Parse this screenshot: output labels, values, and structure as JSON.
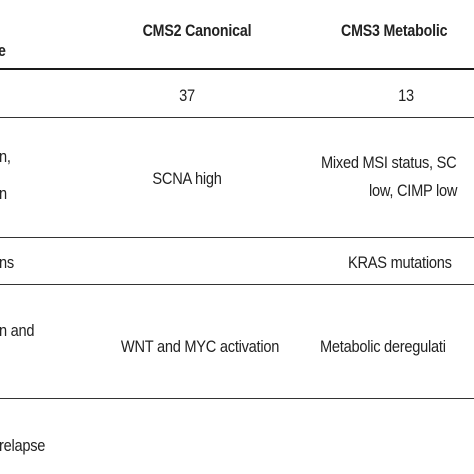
{
  "table": {
    "header": {
      "col1_fragment": "e",
      "cms2": "CMS2 Canonical",
      "cms3": "CMS3 Metabolic"
    },
    "rows": [
      {
        "cms2": "37",
        "cms3": "13"
      },
      {
        "col1_line1": "n,",
        "col1_line2": "n",
        "cms2": "SCNA high",
        "cms3_line1": "Mixed MSI status, SC",
        "cms3_line2": "low, CIMP low"
      },
      {
        "col1": "ns",
        "cms3": "KRAS mutations"
      },
      {
        "col1_line1": "n and",
        "col1_line2": "",
        "cms2": "WNT and MYC activation",
        "cms3": "Metabolic deregulati"
      },
      {
        "col1": "relapse"
      }
    ]
  }
}
